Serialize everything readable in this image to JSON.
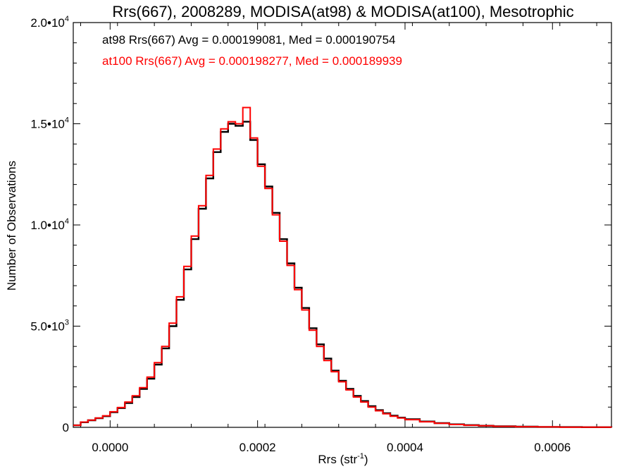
{
  "chart_data": {
    "type": "line",
    "title": "Rrs(667), 2008289, MODISA(at98) & MODISA(at100), Mesotrophic",
    "xlabel": "Rrs (str",
    "xlabel_sup": "-1",
    "xlabel_close": ")",
    "ylabel": "Number of Observations",
    "xlim": [
      -5e-05,
      0.00068
    ],
    "ylim": [
      0,
      20000
    ],
    "grid": false,
    "x_ticks": [
      {
        "value": 0.0,
        "label": "0.0000"
      },
      {
        "value": 0.0002,
        "label": "0.0002"
      },
      {
        "value": 0.0004,
        "label": "0.0004"
      },
      {
        "value": 0.0006,
        "label": "0.0006"
      }
    ],
    "y_ticks": [
      {
        "value": 0,
        "mant": "0",
        "exp": ""
      },
      {
        "value": 5000,
        "mant": "5.0•10",
        "exp": "3"
      },
      {
        "value": 10000,
        "mant": "1.0•10",
        "exp": "4"
      },
      {
        "value": 15000,
        "mant": "1.5•10",
        "exp": "4"
      },
      {
        "value": 20000,
        "mant": "2.0•10",
        "exp": "4"
      }
    ],
    "annotations": [
      {
        "text": "at98 Rrs(667) Avg = 0.000199081, Med = 0.000190754",
        "color": "#000000"
      },
      {
        "text": "at100 Rrs(667) Avg = 0.000198277, Med = 0.000189939",
        "color": "#ff0000"
      }
    ],
    "series": [
      {
        "color": "#000000",
        "x": [
          -5e-05,
          -4e-05,
          -3e-05,
          -2e-05,
          -1e-05,
          0.0,
          1e-05,
          2e-05,
          3e-05,
          4e-05,
          5e-05,
          6e-05,
          7e-05,
          8e-05,
          9e-05,
          0.0001,
          0.00011,
          0.00012,
          0.00013,
          0.00014,
          0.00015,
          0.00016,
          0.00017,
          0.00018,
          0.00019,
          0.0002,
          0.00021,
          0.00022,
          0.00023,
          0.00024,
          0.00025,
          0.00026,
          0.00027,
          0.00028,
          0.00029,
          0.0003,
          0.00031,
          0.00032,
          0.00033,
          0.00034,
          0.00035,
          0.00036,
          0.00037,
          0.00038,
          0.00039,
          0.0004,
          0.00042,
          0.00044,
          0.00046,
          0.00048,
          0.0005,
          0.00052,
          0.00055,
          0.00058,
          0.00061,
          0.00064,
          0.00068
        ],
        "y": [
          100,
          250,
          350,
          450,
          550,
          750,
          950,
          1200,
          1500,
          1900,
          2400,
          3100,
          3900,
          5000,
          6300,
          7800,
          9300,
          10800,
          12300,
          13600,
          14600,
          15000,
          14900,
          15100,
          14200,
          13000,
          11900,
          10600,
          9300,
          8100,
          6900,
          5900,
          4900,
          4100,
          3400,
          2800,
          2300,
          1900,
          1550,
          1300,
          1050,
          850,
          700,
          580,
          480,
          400,
          290,
          210,
          150,
          110,
          80,
          55,
          35,
          22,
          14,
          8,
          5
        ]
      },
      {
        "color": "#ff0000",
        "x": [
          -5e-05,
          -4e-05,
          -3e-05,
          -2e-05,
          -1e-05,
          0.0,
          1e-05,
          2e-05,
          3e-05,
          4e-05,
          5e-05,
          6e-05,
          7e-05,
          8e-05,
          9e-05,
          0.0001,
          0.00011,
          0.00012,
          0.00013,
          0.00014,
          0.00015,
          0.00016,
          0.00017,
          0.00018,
          0.00019,
          0.0002,
          0.00021,
          0.00022,
          0.00023,
          0.00024,
          0.00025,
          0.00026,
          0.00027,
          0.00028,
          0.00029,
          0.0003,
          0.00031,
          0.00032,
          0.00033,
          0.00034,
          0.00035,
          0.00036,
          0.00037,
          0.00038,
          0.00039,
          0.0004,
          0.00042,
          0.00044,
          0.00046,
          0.00048,
          0.0005,
          0.00052,
          0.00055,
          0.00058,
          0.00061,
          0.00064,
          0.00068
        ],
        "y": [
          100,
          260,
          360,
          460,
          570,
          770,
          980,
          1250,
          1560,
          1960,
          2480,
          3200,
          4000,
          5150,
          6450,
          7950,
          9450,
          10950,
          12450,
          13750,
          14750,
          15100,
          15000,
          15800,
          14300,
          12900,
          11800,
          10500,
          9200,
          8000,
          6800,
          5800,
          4800,
          4000,
          3300,
          2750,
          2250,
          1850,
          1500,
          1250,
          1000,
          820,
          670,
          550,
          460,
          380,
          275,
          200,
          140,
          100,
          75,
          50,
          32,
          20,
          12,
          7,
          4
        ]
      }
    ]
  }
}
